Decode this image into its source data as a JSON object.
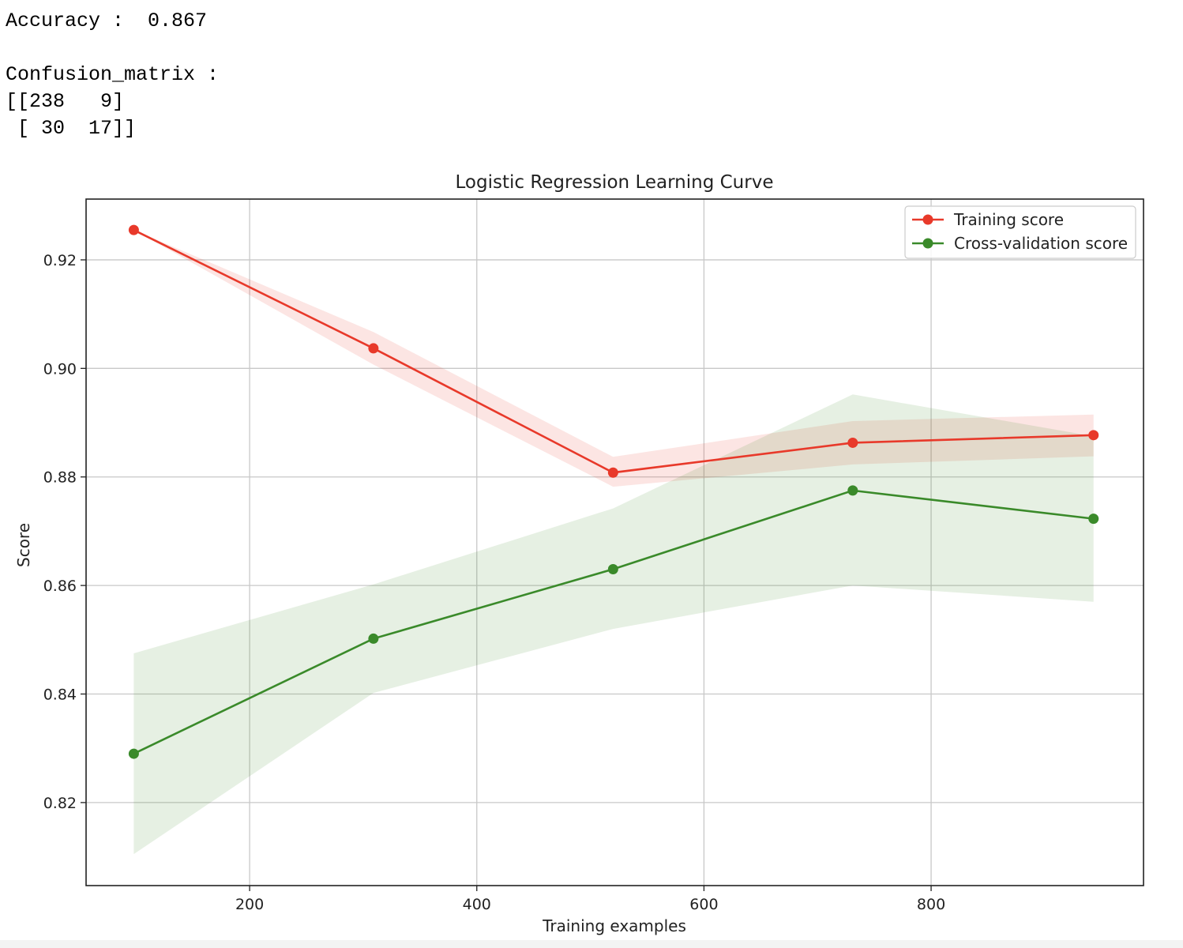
{
  "output": {
    "accuracy_line": "Accuracy :  0.867",
    "confusion_label": "Confusion_matrix :",
    "matrix_row1": "[[238   9]",
    "matrix_row2": " [ 30  17]]"
  },
  "chart_data": {
    "type": "line",
    "title": "Logistic Regression Learning Curve",
    "xlabel": "Training examples",
    "ylabel": "Score",
    "xlim": [
      56,
      987
    ],
    "ylim": [
      0.8047,
      0.9312
    ],
    "xticks": [
      200,
      400,
      600,
      800
    ],
    "yticks": [
      0.82,
      0.84,
      0.86,
      0.88,
      0.9,
      0.92
    ],
    "ytick_labels": [
      "0.82",
      "0.84",
      "0.86",
      "0.88",
      "0.90",
      "0.92"
    ],
    "grid": true,
    "legend_position": "top-right",
    "x": [
      98,
      309,
      520,
      731,
      943
    ],
    "series": [
      {
        "name": "Training score",
        "color": "#e8392a",
        "values": [
          0.9255,
          0.9037,
          0.8808,
          0.8863,
          0.8877
        ],
        "band_low": [
          0.9255,
          0.9007,
          0.8782,
          0.8823,
          0.8838
        ],
        "band_high": [
          0.9255,
          0.9067,
          0.8837,
          0.8903,
          0.8915
        ]
      },
      {
        "name": "Cross-validation score",
        "color": "#3a8a2a",
        "values": [
          0.829,
          0.8502,
          0.863,
          0.8775,
          0.8723
        ],
        "band_low": [
          0.8105,
          0.8402,
          0.852,
          0.86,
          0.857
        ],
        "band_high": [
          0.8475,
          0.8602,
          0.8742,
          0.8952,
          0.8875
        ]
      }
    ]
  }
}
